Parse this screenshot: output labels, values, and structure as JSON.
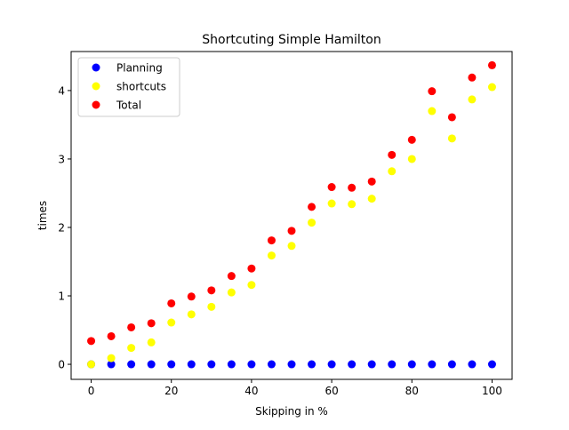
{
  "chart_data": {
    "type": "scatter",
    "title": "Shortcuting Simple Hamilton",
    "xlabel": "Skipping in %",
    "ylabel": "times",
    "xlim": [
      -5,
      105
    ],
    "ylim": [
      -0.22,
      4.57
    ],
    "x_ticks": [
      0,
      20,
      40,
      60,
      80,
      100
    ],
    "y_ticks": [
      0,
      1,
      2,
      3,
      4
    ],
    "grid": false,
    "legend_position": "top-left",
    "x": [
      0,
      5,
      10,
      15,
      20,
      25,
      30,
      35,
      40,
      45,
      50,
      55,
      60,
      65,
      70,
      75,
      80,
      85,
      90,
      95,
      100
    ],
    "series": [
      {
        "name": "Planning",
        "color": "#0000ff",
        "values": [
          0,
          0,
          0,
          0,
          0,
          0,
          0,
          0,
          0,
          0,
          0,
          0,
          0,
          0,
          0,
          0,
          0,
          0,
          0,
          0,
          0
        ]
      },
      {
        "name": "shortcuts",
        "color": "#ffff00",
        "values": [
          0,
          0.09,
          0.24,
          0.32,
          0.61,
          0.73,
          0.84,
          1.05,
          1.16,
          1.59,
          1.73,
          2.07,
          2.35,
          2.34,
          2.42,
          2.82,
          3.0,
          3.7,
          3.3,
          3.87,
          4.05
        ]
      },
      {
        "name": "Total",
        "color": "#ff0000",
        "values": [
          0.34,
          0.41,
          0.54,
          0.6,
          0.89,
          0.99,
          1.08,
          1.29,
          1.4,
          1.81,
          1.95,
          2.3,
          2.59,
          2.58,
          2.67,
          3.06,
          3.28,
          3.99,
          3.61,
          4.19,
          4.37
        ]
      }
    ]
  }
}
